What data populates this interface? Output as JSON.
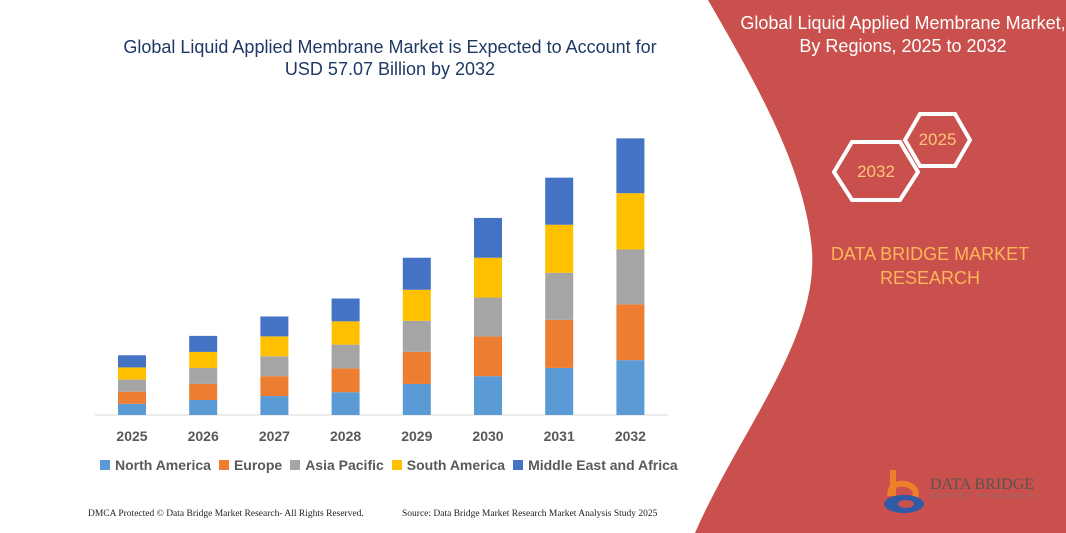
{
  "title": "Global Liquid Applied Membrane Market is Expected to Account for USD 57.07 Billion by 2032",
  "panel": {
    "title": "Global Liquid Applied Membrane Market, By Regions, 2025 to 2032",
    "hex_front": "2032",
    "hex_back": "2025",
    "brand": "DATA BRIDGE MARKET RESEARCH",
    "logo_text": "DATA BRIDGE",
    "logo_sub": "MARKET RESEARCH",
    "color": "#c9504c"
  },
  "footer": {
    "left": "DMCA Protected © Data Bridge Market Research- All Rights Reserved.",
    "right": "Source: Data Bridge Market Research Market Analysis Study 2025"
  },
  "chart_data": {
    "type": "bar",
    "stacked": true,
    "categories": [
      "2025",
      "2026",
      "2027",
      "2028",
      "2029",
      "2030",
      "2031",
      "2032"
    ],
    "series": [
      {
        "name": "North America",
        "color": "#5b9bd5",
        "values": [
          2.3,
          3.1,
          3.9,
          4.7,
          6.4,
          8.0,
          9.7,
          11.3
        ]
      },
      {
        "name": "Europe",
        "color": "#ed7d31",
        "values": [
          2.5,
          3.3,
          4.1,
          4.9,
          6.6,
          8.2,
          9.9,
          11.5
        ]
      },
      {
        "name": "Asia Pacific",
        "color": "#a5a5a5",
        "values": [
          2.5,
          3.3,
          4.1,
          4.9,
          6.4,
          8.0,
          9.7,
          11.3
        ]
      },
      {
        "name": "South America",
        "color": "#ffc000",
        "values": [
          2.5,
          3.3,
          4.1,
          4.8,
          6.4,
          8.2,
          9.9,
          11.6
        ]
      },
      {
        "name": "Middle East and Africa",
        "color": "#4472c4",
        "values": [
          2.5,
          3.3,
          4.1,
          4.7,
          6.6,
          8.2,
          9.7,
          11.3
        ]
      }
    ],
    "y_axis_visible": false,
    "grid": false,
    "legend_position": "bottom"
  }
}
